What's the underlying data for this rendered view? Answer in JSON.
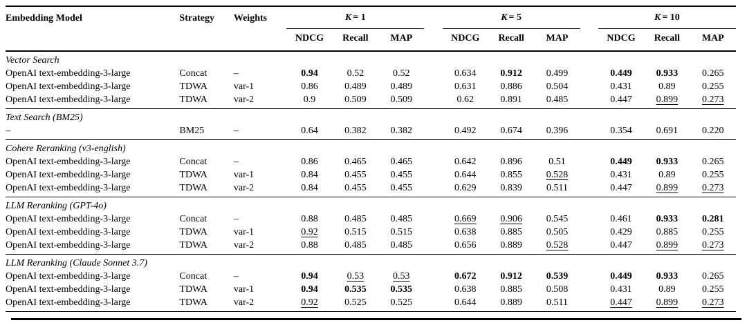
{
  "page": {
    "background_color": "#ffffff",
    "text_color": "#000000"
  },
  "table": {
    "headers": {
      "embedding_model": "Embedding Model",
      "strategy": "Strategy",
      "weights": "Weights"
    },
    "k_groups": [
      {
        "symbol": "K",
        "rest": "= 1"
      },
      {
        "symbol": "K",
        "rest": "= 5"
      },
      {
        "symbol": "K",
        "rest": "= 10"
      }
    ],
    "metric_headers": [
      "NDCG",
      "Recall",
      "MAP"
    ],
    "sections": [
      {
        "title": "Vector Search",
        "rows": [
          {
            "model": "OpenAI text-embedding-3-large",
            "strategy": "Concat",
            "weights": "–",
            "values": [
              {
                "v": "0.94",
                "s": "b"
              },
              {
                "v": "0.52"
              },
              {
                "v": "0.52"
              },
              {
                "v": "0.634"
              },
              {
                "v": "0.912",
                "s": "b"
              },
              {
                "v": "0.499"
              },
              {
                "v": "0.449",
                "s": "b"
              },
              {
                "v": "0.933",
                "s": "b"
              },
              {
                "v": "0.265"
              }
            ]
          },
          {
            "model": "OpenAI text-embedding-3-large",
            "strategy": "TDWA",
            "weights": "var-1",
            "values": [
              {
                "v": "0.86"
              },
              {
                "v": "0.489"
              },
              {
                "v": "0.489"
              },
              {
                "v": "0.631"
              },
              {
                "v": "0.886"
              },
              {
                "v": "0.504"
              },
              {
                "v": "0.431"
              },
              {
                "v": "0.89"
              },
              {
                "v": "0.255"
              }
            ]
          },
          {
            "model": "OpenAI text-embedding-3-large",
            "strategy": "TDWA",
            "weights": "var-2",
            "values": [
              {
                "v": "0.9"
              },
              {
                "v": "0.509"
              },
              {
                "v": "0.509"
              },
              {
                "v": "0.62"
              },
              {
                "v": "0.891"
              },
              {
                "v": "0.485"
              },
              {
                "v": "0.447"
              },
              {
                "v": "0.899",
                "s": "u"
              },
              {
                "v": "0.273",
                "s": "u"
              }
            ]
          }
        ]
      },
      {
        "title": "Text Search (BM25)",
        "rows": [
          {
            "model": "–",
            "strategy": "BM25",
            "weights": "–",
            "values": [
              {
                "v": "0.64"
              },
              {
                "v": "0.382"
              },
              {
                "v": "0.382"
              },
              {
                "v": "0.492"
              },
              {
                "v": "0.674"
              },
              {
                "v": "0.396"
              },
              {
                "v": "0.354"
              },
              {
                "v": "0.691"
              },
              {
                "v": "0.220"
              }
            ]
          }
        ]
      },
      {
        "title": "Cohere Reranking (v3-english)",
        "rows": [
          {
            "model": "OpenAI text-embedding-3-large",
            "strategy": "Concat",
            "weights": "–",
            "values": [
              {
                "v": "0.86"
              },
              {
                "v": "0.465"
              },
              {
                "v": "0.465"
              },
              {
                "v": "0.642"
              },
              {
                "v": "0.896"
              },
              {
                "v": "0.51"
              },
              {
                "v": "0.449",
                "s": "b"
              },
              {
                "v": "0.933",
                "s": "b"
              },
              {
                "v": "0.265"
              }
            ]
          },
          {
            "model": "OpenAI text-embedding-3-large",
            "strategy": "TDWA",
            "weights": "var-1",
            "values": [
              {
                "v": "0.84"
              },
              {
                "v": "0.455"
              },
              {
                "v": "0.455"
              },
              {
                "v": "0.644"
              },
              {
                "v": "0.855"
              },
              {
                "v": "0.528",
                "s": "u"
              },
              {
                "v": "0.431"
              },
              {
                "v": "0.89"
              },
              {
                "v": "0.255"
              }
            ]
          },
          {
            "model": "OpenAI text-embedding-3-large",
            "strategy": "TDWA",
            "weights": "var-2",
            "values": [
              {
                "v": "0.84"
              },
              {
                "v": "0.455"
              },
              {
                "v": "0.455"
              },
              {
                "v": "0.629"
              },
              {
                "v": "0.839"
              },
              {
                "v": "0.511"
              },
              {
                "v": "0.447"
              },
              {
                "v": "0.899",
                "s": "u"
              },
              {
                "v": "0.273",
                "s": "u"
              }
            ]
          }
        ]
      },
      {
        "title": "LLM Reranking (GPT-4o)",
        "rows": [
          {
            "model": "OpenAI text-embedding-3-large",
            "strategy": "Concat",
            "weights": "–",
            "values": [
              {
                "v": "0.88"
              },
              {
                "v": "0.485"
              },
              {
                "v": "0.485"
              },
              {
                "v": "0.669",
                "s": "u"
              },
              {
                "v": "0.906",
                "s": "u"
              },
              {
                "v": "0.545"
              },
              {
                "v": "0.461"
              },
              {
                "v": "0.933",
                "s": "b"
              },
              {
                "v": "0.281",
                "s": "b"
              }
            ]
          },
          {
            "model": "OpenAI text-embedding-3-large",
            "strategy": "TDWA",
            "weights": "var-1",
            "values": [
              {
                "v": "0.92",
                "s": "u"
              },
              {
                "v": "0.515"
              },
              {
                "v": "0.515"
              },
              {
                "v": "0.638"
              },
              {
                "v": "0.885"
              },
              {
                "v": "0.505"
              },
              {
                "v": "0.429"
              },
              {
                "v": "0.885"
              },
              {
                "v": "0.255"
              }
            ]
          },
          {
            "model": "OpenAI text-embedding-3-large",
            "strategy": "TDWA",
            "weights": "var-2",
            "values": [
              {
                "v": "0.88"
              },
              {
                "v": "0.485"
              },
              {
                "v": "0.485"
              },
              {
                "v": "0.656"
              },
              {
                "v": "0.889"
              },
              {
                "v": "0.528",
                "s": "u"
              },
              {
                "v": "0.447"
              },
              {
                "v": "0.899",
                "s": "u"
              },
              {
                "v": "0.273",
                "s": "u"
              }
            ]
          }
        ]
      },
      {
        "title": "LLM Reranking (Claude Sonnet 3.7)",
        "rows": [
          {
            "model": "OpenAI text-embedding-3-large",
            "strategy": "Concat",
            "weights": "–",
            "values": [
              {
                "v": "0.94",
                "s": "b"
              },
              {
                "v": "0.53",
                "s": "u"
              },
              {
                "v": "0.53",
                "s": "u"
              },
              {
                "v": "0.672",
                "s": "b"
              },
              {
                "v": "0.912",
                "s": "b"
              },
              {
                "v": "0.539",
                "s": "b"
              },
              {
                "v": "0.449",
                "s": "b"
              },
              {
                "v": "0.933",
                "s": "b"
              },
              {
                "v": "0.265"
              }
            ]
          },
          {
            "model": "OpenAI text-embedding-3-large",
            "strategy": "TDWA",
            "weights": "var-1",
            "values": [
              {
                "v": "0.94",
                "s": "b"
              },
              {
                "v": "0.535",
                "s": "b"
              },
              {
                "v": "0.535",
                "s": "b"
              },
              {
                "v": "0.638"
              },
              {
                "v": "0.885"
              },
              {
                "v": "0.508"
              },
              {
                "v": "0.431"
              },
              {
                "v": "0.89"
              },
              {
                "v": "0.255"
              }
            ]
          },
          {
            "model": "OpenAI text-embedding-3-large",
            "strategy": "TDWA",
            "weights": "var-2",
            "values": [
              {
                "v": "0.92",
                "s": "u"
              },
              {
                "v": "0.525"
              },
              {
                "v": "0.525"
              },
              {
                "v": "0.644"
              },
              {
                "v": "0.889"
              },
              {
                "v": "0.511"
              },
              {
                "v": "0.447",
                "s": "u"
              },
              {
                "v": "0.899",
                "s": "u"
              },
              {
                "v": "0.273",
                "s": "u"
              }
            ]
          }
        ]
      }
    ]
  }
}
